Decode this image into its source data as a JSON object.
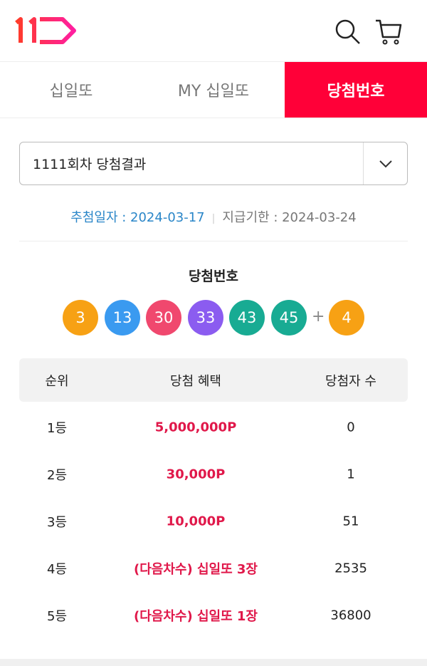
{
  "header": {
    "logo": "11번가 logo",
    "icons": [
      "search-icon",
      "cart-icon"
    ]
  },
  "tabs": [
    {
      "label": "십일또",
      "active": false
    },
    {
      "label": "MY 십일또",
      "active": false
    },
    {
      "label": "당첨번호",
      "active": true
    }
  ],
  "round_select": {
    "value": "1111회차 당첨결과"
  },
  "dates": {
    "draw": "추첨일자 : 2024-03-17",
    "deadline": "지급기한 : 2024-03-24"
  },
  "numbers": {
    "title": "당첨번호",
    "balls": [
      {
        "n": "3",
        "color": "#f7a114"
      },
      {
        "n": "13",
        "color": "#3a9af0"
      },
      {
        "n": "30",
        "color": "#f0486e"
      },
      {
        "n": "33",
        "color": "#8b5cf0"
      },
      {
        "n": "43",
        "color": "#18ab93"
      },
      {
        "n": "45",
        "color": "#18ab93"
      }
    ],
    "plus": "+",
    "bonus": {
      "n": "4",
      "color": "#f7a114"
    }
  },
  "table": {
    "headers": [
      "순위",
      "당첨 혜택",
      "당첨자 수"
    ],
    "rows": [
      [
        "1등",
        "5,000,000P",
        "0"
      ],
      [
        "2등",
        "30,000P",
        "1"
      ],
      [
        "3등",
        "10,000P",
        "51"
      ],
      [
        "4등",
        "(다음차수) 십일또 3장",
        "2535"
      ],
      [
        "5등",
        "(다음차수) 십일또 1장",
        "36800"
      ]
    ]
  },
  "colors": {
    "accent": "#ff0038",
    "prize": "#e0184a",
    "date": "#2a86c8"
  }
}
